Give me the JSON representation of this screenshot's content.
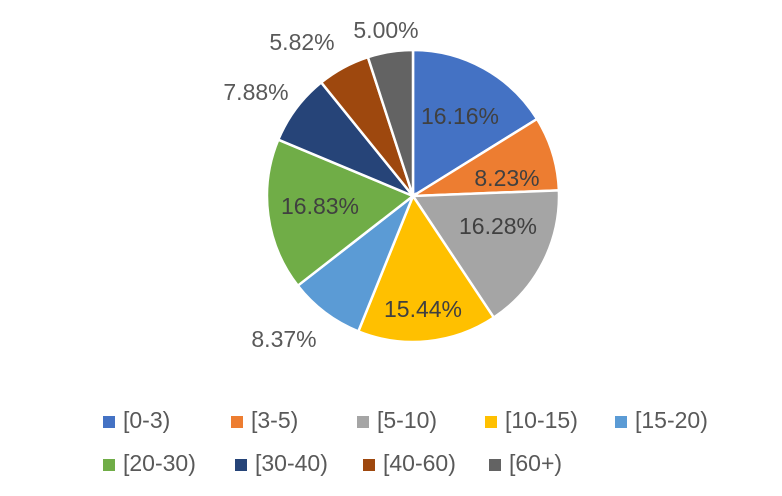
{
  "chart_data": {
    "type": "pie",
    "title": "",
    "legend_position": "bottom",
    "categories": [
      "[0-3)",
      "[3-5)",
      "[5-10)",
      "[10-15)",
      "[15-20)",
      "[20-30)",
      "[30-40)",
      "[40-60)",
      "[60+)"
    ],
    "values": [
      16.16,
      8.23,
      16.28,
      15.44,
      8.37,
      16.83,
      7.88,
      5.82,
      5.0
    ],
    "labels": [
      "16.16%",
      "8.23%",
      "16.28%",
      "15.44%",
      "8.37%",
      "16.83%",
      "7.88%",
      "5.82%",
      "5.00%"
    ],
    "label_placement": [
      "inside",
      "inside",
      "inside",
      "inside",
      "outside",
      "inside",
      "outside",
      "outside",
      "outside"
    ],
    "colors": [
      "#4472C4",
      "#ED7D31",
      "#A5A5A5",
      "#FFC000",
      "#5B9BD5",
      "#70AD47",
      "#264478",
      "#9E480E",
      "#636363"
    ],
    "label_colors": [
      "#404040",
      "#404040",
      "#404040",
      "#404040",
      "#595959",
      "#404040",
      "#595959",
      "#595959",
      "#595959"
    ]
  }
}
